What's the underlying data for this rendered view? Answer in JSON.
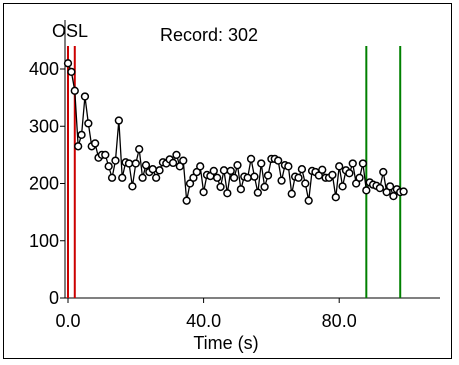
{
  "chart_data": {
    "type": "line",
    "title": "OSL",
    "subtitle": "Record: 302",
    "xlabel": "Time (s)",
    "ylabel": "",
    "xlim": [
      0,
      106
    ],
    "ylim": [
      0,
      430
    ],
    "xticks": [
      {
        "value": 0,
        "label": "0.0"
      },
      {
        "value": 40,
        "label": "40.0"
      },
      {
        "value": 80,
        "label": "80.0"
      }
    ],
    "yticks": [
      {
        "value": 0,
        "label": "0"
      },
      {
        "value": 100,
        "label": "100"
      },
      {
        "value": 200,
        "label": "200"
      },
      {
        "value": 300,
        "label": "300"
      },
      {
        "value": 400,
        "label": "400"
      }
    ],
    "grid": false,
    "series": [
      {
        "color": "#000000",
        "marker": "open-circle",
        "x": [
          0,
          1,
          2,
          3,
          4,
          5,
          6,
          7,
          8,
          9,
          10,
          11,
          12,
          13,
          14,
          15,
          16,
          17,
          18,
          19,
          20,
          21,
          22,
          23,
          24,
          25,
          26,
          27,
          28,
          29,
          30,
          31,
          32,
          33,
          34,
          35,
          36,
          37,
          38,
          39,
          40,
          41,
          42,
          43,
          44,
          45,
          46,
          47,
          48,
          49,
          50,
          51,
          52,
          53,
          54,
          55,
          56,
          57,
          58,
          59,
          60,
          61,
          62,
          63,
          64,
          65,
          66,
          67,
          68,
          69,
          70,
          71,
          72,
          73,
          74,
          75,
          76,
          77,
          78,
          79,
          80,
          81,
          82,
          83,
          84,
          85,
          86,
          87,
          88,
          89,
          90,
          91,
          92,
          93,
          94,
          95,
          96,
          97,
          98,
          99
        ],
        "y": [
          410,
          395,
          362,
          265,
          285,
          352,
          305,
          265,
          270,
          245,
          250,
          250,
          230,
          210,
          240,
          310,
          210,
          237,
          235,
          195,
          235,
          260,
          210,
          232,
          220,
          225,
          210,
          223,
          237,
          235,
          242,
          236,
          250,
          230,
          240,
          170,
          200,
          210,
          220,
          230,
          185,
          215,
          213,
          222,
          210,
          194,
          223,
          183,
          222,
          210,
          232,
          190,
          212,
          210,
          243,
          212,
          184,
          235,
          194,
          214,
          243,
          243,
          240,
          205,
          232,
          230,
          182,
          212,
          210,
          225,
          200,
          170,
          222,
          220,
          214,
          224,
          210,
          210,
          215,
          176,
          230,
          195,
          223,
          218,
          235,
          200,
          210,
          235,
          188,
          202,
          198,
          196,
          192,
          220,
          185,
          195,
          178,
          190,
          185,
          186
        ]
      }
    ],
    "markers_red_x": [
      0,
      2
    ],
    "markers_green_x": [
      88,
      98
    ],
    "colors": {
      "signal_lines": "#cc0000",
      "background_lines": "#008000",
      "data": "#000000"
    }
  }
}
